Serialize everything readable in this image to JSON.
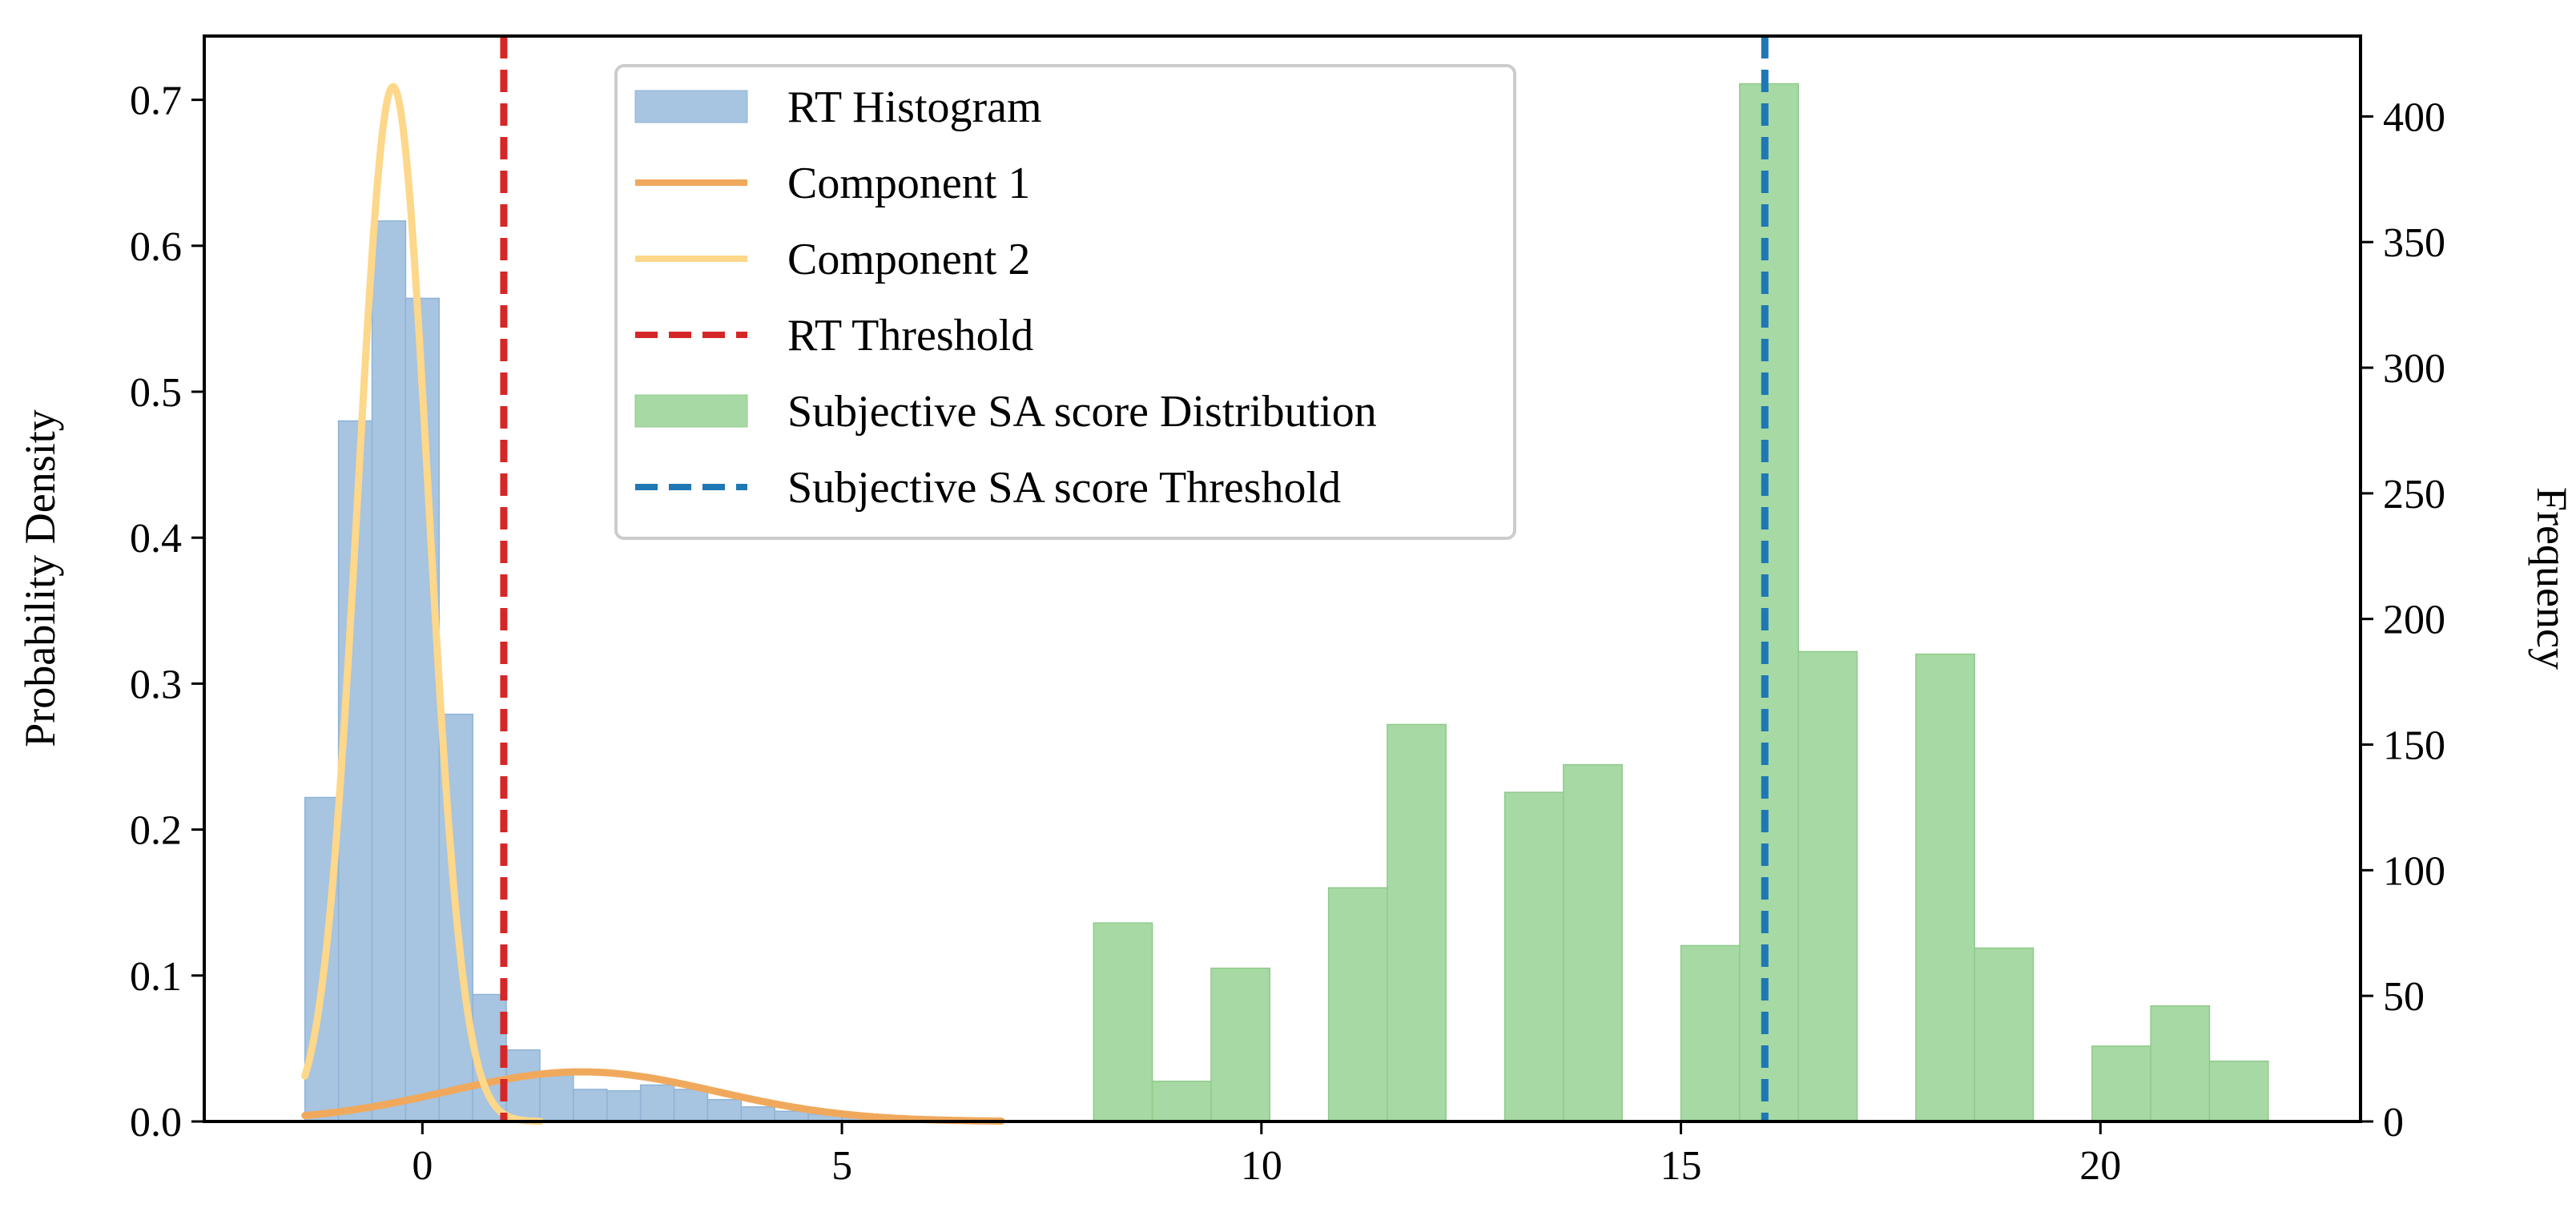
{
  "chart_data": {
    "type": "histogram",
    "title": "",
    "xlabel": "",
    "ylabel_left": "Probability Density",
    "ylabel_right": "Frequency",
    "xlim": [
      -2.6,
      23.1
    ],
    "ylim_left": [
      0,
      0.7437
    ],
    "ylim_right": [
      0,
      432
    ],
    "x_ticks": [
      0,
      5,
      10,
      15,
      20
    ],
    "y_left_ticks": [
      0.0,
      0.1,
      0.2,
      0.3,
      0.4,
      0.5,
      0.6,
      0.7
    ],
    "y_right_ticks": [
      0,
      50,
      100,
      150,
      200,
      250,
      300,
      350,
      400
    ],
    "x_tick_labels": [
      "0",
      "5",
      "10",
      "15",
      "20"
    ],
    "y_left_tick_labels": [
      "0.0",
      "0.1",
      "0.2",
      "0.3",
      "0.4",
      "0.5",
      "0.6",
      "0.7"
    ],
    "y_right_tick_labels": [
      "0",
      "50",
      "100",
      "150",
      "200",
      "250",
      "300",
      "350",
      "400"
    ],
    "colors": {
      "rt_hist": "#a7c4e0",
      "rt_hist_edge": "#8fb3d6",
      "component1": "#f0a95c",
      "component2": "#fdd78a",
      "rt_threshold": "#d62728",
      "sa_hist": "#a6d9a3",
      "sa_hist_edge": "#8fcb8b",
      "sa_threshold": "#1f77b4"
    },
    "rt_histogram": {
      "name": "RT Histogram",
      "axis": "left",
      "bin_edges": [
        -1.4,
        -1.0,
        -0.6,
        -0.2,
        0.2,
        0.6,
        1.0,
        1.4,
        1.8,
        2.2,
        2.6,
        3.0,
        3.4,
        3.8,
        4.2,
        4.6,
        5.0,
        5.4,
        5.8,
        6.2,
        6.6
      ],
      "density": [
        0.222,
        0.48,
        0.617,
        0.564,
        0.279,
        0.087,
        0.049,
        0.032,
        0.022,
        0.021,
        0.025,
        0.022,
        0.015,
        0.01,
        0.007,
        0.005,
        0.004,
        0.003,
        0.002,
        0.001
      ]
    },
    "component_1": {
      "name": "Component 1",
      "axis": "left",
      "distribution": "normal-scaled",
      "mean": 1.9,
      "std": 1.6,
      "peak": 0.034,
      "x_range": [
        -1.4,
        6.9
      ]
    },
    "component_2": {
      "name": "Component 2",
      "axis": "left",
      "distribution": "normal-scaled",
      "mean": -0.35,
      "std": 0.42,
      "peak": 0.709,
      "x_range": [
        -1.4,
        1.4
      ]
    },
    "rt_threshold": {
      "name": "RT Threshold",
      "x": 0.97
    },
    "sa_histogram": {
      "name": "Subjective SA score Distribution",
      "axis": "right",
      "bin_edges": [
        8,
        8.7,
        9.4,
        10.1,
        10.8,
        11.5,
        12.2,
        12.9,
        13.6,
        14.3,
        15.0,
        15.7,
        16.4,
        17.1,
        17.8,
        18.5,
        19.2,
        19.9,
        20.6,
        21.3,
        22.0
      ],
      "counts": [
        79,
        16,
        61,
        0,
        93,
        158,
        0,
        131,
        142,
        0,
        70,
        413,
        187,
        0,
        186,
        69,
        0,
        30,
        46,
        24
      ]
    },
    "sa_threshold": {
      "name": "Subjective SA score Threshold",
      "x": 16.0
    },
    "legend": {
      "placement": "top-center",
      "entries": [
        "RT Histogram",
        "Component 1",
        "Component 2",
        "RT Threshold",
        "Subjective SA score Distribution",
        "Subjective SA score Threshold"
      ]
    }
  }
}
